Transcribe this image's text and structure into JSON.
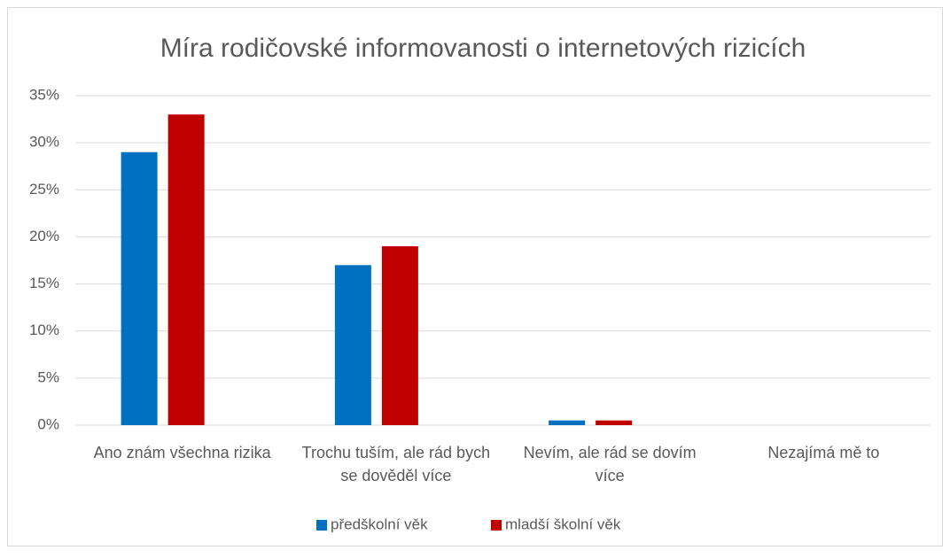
{
  "chart_data": {
    "type": "bar",
    "title": "Míra rodičovské informovanosti o internetových rizicích",
    "categories": [
      "Ano znám všechna rizika",
      "Trochu tuším, ale rád bych se dověděl více",
      "Nevím, ale rád se dovím více",
      "Nezajímá mě to"
    ],
    "series": [
      {
        "name": "předškolní věk",
        "color": "#0070c0",
        "values": [
          29,
          17,
          0.5,
          0
        ]
      },
      {
        "name": "mladší školní věk",
        "color": "#c00000",
        "values": [
          33,
          19,
          0.5,
          0
        ]
      }
    ],
    "ylim": [
      0,
      35
    ],
    "yticks": [
      {
        "value": 0,
        "label": "0%"
      },
      {
        "value": 5,
        "label": "5%"
      },
      {
        "value": 10,
        "label": "10%"
      },
      {
        "value": 15,
        "label": "15%"
      },
      {
        "value": 20,
        "label": "20%"
      },
      {
        "value": 25,
        "label": "25%"
      },
      {
        "value": 30,
        "label": "30%"
      },
      {
        "value": 35,
        "label": "35%"
      }
    ],
    "grid": true,
    "legend": "bottom"
  }
}
